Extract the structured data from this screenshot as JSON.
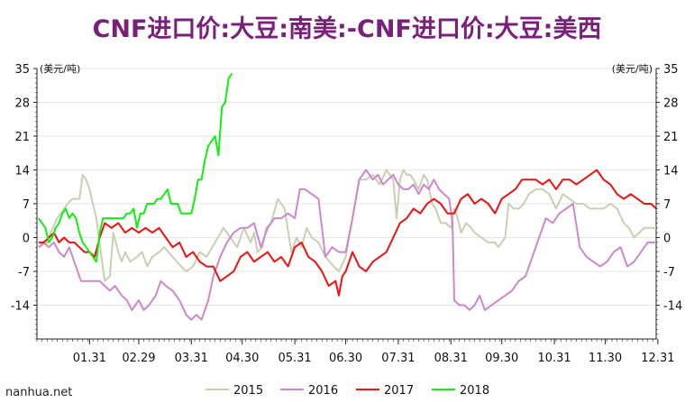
{
  "title": "CNF进口价:大豆:南美:-CNF进口价:大豆:美西",
  "watermark": "nanhua.net",
  "chart_data": {
    "type": "line",
    "title": "CNF进口价:大豆:南美:-CNF进口价:大豆:美西",
    "y_unit_left": "(美元/吨)",
    "y_unit_right": "(美元/吨)",
    "ylim": [
      -21,
      35
    ],
    "yticks": [
      35,
      28,
      21,
      14,
      7,
      0,
      -7,
      -14
    ],
    "xlim": [
      0,
      365
    ],
    "x_tick_labels": [
      "01.31",
      "02.29",
      "03.31",
      "04.30",
      "05.31",
      "06.30",
      "07.31",
      "08.31",
      "09.30",
      "10.31",
      "11.30",
      "12.31"
    ],
    "x_tick_days": [
      31,
      60,
      91,
      121,
      152,
      182,
      213,
      244,
      274,
      305,
      335,
      366
    ],
    "grid": true,
    "legend_position": "bottom",
    "series": [
      {
        "name": "2015",
        "color": "#c8d0b2",
        "x": [
          1,
          6,
          8,
          12,
          16,
          18,
          21,
          25,
          27,
          29,
          31,
          35,
          38,
          40,
          43,
          45,
          48,
          50,
          52,
          55,
          59,
          62,
          65,
          68,
          72,
          75,
          80,
          85,
          88,
          92,
          96,
          100,
          105,
          110,
          114,
          118,
          122,
          126,
          128,
          130,
          133,
          135,
          138,
          142,
          146,
          150,
          153,
          156,
          159,
          162,
          166,
          170,
          175,
          178,
          182,
          186,
          190,
          194,
          198,
          202,
          206,
          210,
          212,
          214,
          216,
          218,
          220,
          222,
          225,
          228,
          230,
          233,
          235,
          238,
          241,
          244,
          246,
          248,
          250,
          253,
          256,
          258,
          262,
          266,
          270,
          272,
          274,
          276,
          278,
          281,
          284,
          287,
          290,
          294,
          298,
          302,
          306,
          310,
          314,
          318,
          322,
          326,
          330,
          334,
          338,
          342,
          346,
          349,
          352,
          355,
          358,
          362,
          365
        ],
        "y": [
          -2,
          -1,
          1,
          4,
          6,
          7,
          8,
          8,
          13,
          12,
          10,
          4,
          -4,
          -9,
          -8,
          1,
          -3,
          -5,
          -3,
          -5,
          -4,
          -3,
          -6,
          -4,
          -3,
          -2,
          -4,
          -6,
          -7,
          -6,
          -3,
          -4,
          -1,
          2,
          0,
          -2,
          2,
          -1,
          1,
          -3,
          -2,
          2,
          3,
          8,
          6,
          -3,
          0,
          -2,
          2,
          0,
          -1,
          -4,
          -6,
          -7,
          -4,
          4,
          12,
          12,
          13,
          11,
          14,
          12,
          4,
          12,
          14,
          13,
          13,
          12,
          10,
          13,
          12,
          7,
          6,
          3,
          3,
          2,
          6,
          4,
          1,
          3,
          2,
          1,
          0,
          -1,
          -1,
          -2,
          -1,
          0,
          7,
          6,
          6,
          7,
          9,
          10,
          10,
          9,
          6,
          9,
          8,
          7,
          7,
          6,
          6,
          6,
          7,
          6,
          3,
          2,
          0,
          1,
          2,
          2,
          2
        ]
      },
      {
        "name": "2016",
        "color": "#cc88cc",
        "x": [
          1,
          4,
          7,
          10,
          13,
          16,
          19,
          22,
          26,
          30,
          34,
          37,
          40,
          43,
          46,
          50,
          53,
          56,
          60,
          63,
          66,
          70,
          73,
          76,
          80,
          84,
          88,
          91,
          94,
          97,
          101,
          104,
          108,
          112,
          116,
          120,
          124,
          128,
          132,
          136,
          140,
          144,
          148,
          152,
          155,
          158,
          162,
          166,
          170,
          174,
          178,
          182,
          186,
          190,
          194,
          198,
          201,
          204,
          207,
          210,
          213,
          216,
          219,
          222,
          225,
          228,
          231,
          234,
          237,
          240,
          243,
          245,
          246,
          249,
          252,
          255,
          258,
          261,
          264,
          268,
          272,
          276,
          280,
          284,
          288,
          292,
          296,
          300,
          304,
          308,
          312,
          316,
          320,
          324,
          328,
          332,
          336,
          340,
          344,
          348,
          352,
          356,
          360,
          365
        ],
        "y": [
          -2,
          -1,
          -2,
          -1,
          -3,
          -4,
          -2,
          -5,
          -9,
          -9,
          -9,
          -9,
          -10,
          -11,
          -10,
          -12,
          -13,
          -15,
          -13,
          -15,
          -14,
          -12,
          -9,
          -10,
          -11,
          -13,
          -16,
          -17,
          -16,
          -17,
          -13,
          -8,
          -4,
          -1,
          1,
          2,
          2,
          3,
          -2,
          2,
          4,
          4,
          5,
          4,
          10,
          10,
          9,
          8,
          -4,
          -2,
          -3,
          -3,
          4,
          12,
          14,
          12,
          13,
          11,
          12,
          13,
          11,
          10,
          10,
          11,
          9,
          11,
          10,
          12,
          10,
          9,
          8,
          3,
          -13,
          -14,
          -14,
          -15,
          -14,
          -12,
          -15,
          -14,
          -13,
          -12,
          -11,
          -9,
          -8,
          -4,
          0,
          4,
          3,
          5,
          6,
          7,
          -2,
          -4,
          -5,
          -6,
          -5,
          -3,
          -2,
          -6,
          -5,
          -3,
          -1,
          -1
        ]
      },
      {
        "name": "2017",
        "color": "#ee1111",
        "x": [
          1,
          4,
          7,
          10,
          13,
          16,
          19,
          22,
          25,
          28,
          31,
          34,
          37,
          40,
          44,
          48,
          52,
          56,
          60,
          64,
          68,
          72,
          76,
          80,
          84,
          88,
          92,
          96,
          100,
          104,
          108,
          112,
          116,
          120,
          124,
          128,
          132,
          136,
          140,
          144,
          148,
          152,
          156,
          160,
          164,
          168,
          172,
          176,
          178,
          180,
          182,
          186,
          190,
          194,
          198,
          202,
          206,
          210,
          214,
          218,
          222,
          226,
          230,
          234,
          238,
          242,
          246,
          250,
          254,
          258,
          262,
          266,
          270,
          274,
          278,
          282,
          286,
          290,
          294,
          298,
          302,
          306,
          310,
          314,
          318,
          322,
          326,
          330,
          334,
          338,
          342,
          346,
          350,
          354,
          358,
          362,
          365
        ],
        "y": [
          -1,
          -1,
          0,
          1,
          -1,
          0,
          -1,
          -1,
          -2,
          -3,
          -3,
          -4,
          0,
          3,
          2,
          3,
          1,
          2,
          1,
          2,
          1,
          2,
          0,
          -2,
          -1,
          -4,
          -3,
          -5,
          -6,
          -6,
          -9,
          -8,
          -7,
          -4,
          -3,
          -5,
          -4,
          -3,
          -5,
          -4,
          -6,
          -2,
          -1,
          -4,
          -5,
          -7,
          -10,
          -9,
          -12,
          -8,
          -7,
          -3,
          -6,
          -7,
          -5,
          -4,
          -3,
          0,
          3,
          4,
          6,
          5,
          7,
          8,
          7,
          5,
          5,
          8,
          9,
          7,
          8,
          7,
          5,
          8,
          9,
          10,
          12,
          12,
          12,
          11,
          12,
          10,
          12,
          12,
          11,
          12,
          13,
          14,
          12,
          11,
          9,
          8,
          9,
          8,
          7,
          7,
          6
        ]
      },
      {
        "name": "2018",
        "color": "#11ee11",
        "x": [
          1,
          3,
          5,
          7,
          9,
          11,
          13,
          15,
          17,
          19,
          21,
          23,
          25,
          27,
          29,
          31,
          33,
          35,
          37,
          39,
          41,
          43,
          45,
          47,
          49,
          51,
          53,
          55,
          57,
          59,
          61,
          63,
          65,
          67,
          69,
          71,
          73,
          75,
          77,
          79,
          81,
          83,
          85,
          87,
          89,
          91,
          93,
          95,
          97,
          99,
          101,
          103,
          105,
          107,
          109,
          111,
          113,
          115
        ],
        "y": [
          4,
          3,
          2,
          -1,
          0,
          2,
          3,
          5,
          6,
          4,
          5,
          4,
          1,
          -1,
          -2,
          -3,
          -4,
          -5,
          1,
          4,
          4,
          4,
          4,
          4,
          4,
          4,
          5,
          5,
          6,
          2,
          5,
          5,
          7,
          7,
          7,
          8,
          8,
          9,
          10,
          7,
          7,
          7,
          5,
          5,
          5,
          5,
          8,
          12,
          12,
          16,
          19,
          20,
          21,
          17,
          27,
          28,
          33,
          34
        ]
      }
    ]
  }
}
